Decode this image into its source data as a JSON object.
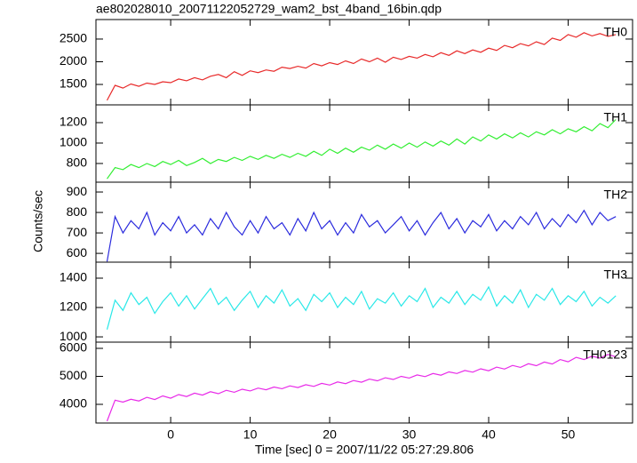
{
  "title": "ae802028010_20071122052729_wam2_bst_4band_16bin.qdp",
  "ylabel": "Counts/sec",
  "xlabel": "Time [sec] 0 = 2007/11/22 05:27:29.806",
  "chart_data": [
    {
      "type": "line",
      "xlim": [
        -9.4,
        58.1
      ],
      "xticks": [
        0,
        10,
        20,
        30,
        40,
        50
      ],
      "ylim": [
        1050,
        2930
      ],
      "yticks": [
        1500,
        2000,
        2500
      ],
      "x": [
        -8,
        -7,
        -6,
        -5,
        -4,
        -3,
        -2,
        -1,
        0,
        1,
        2,
        3,
        4,
        5,
        6,
        7,
        8,
        9,
        10,
        11,
        12,
        13,
        14,
        15,
        16,
        17,
        18,
        19,
        20,
        21,
        22,
        23,
        24,
        25,
        26,
        27,
        28,
        29,
        30,
        31,
        32,
        33,
        34,
        35,
        36,
        37,
        38,
        39,
        40,
        41,
        42,
        43,
        44,
        45,
        46,
        47,
        48,
        49,
        50,
        51,
        52,
        53,
        54,
        55,
        56
      ],
      "series": [
        {
          "name": "TH0",
          "color": "#e82a2a",
          "values": [
            1150,
            1480,
            1420,
            1510,
            1460,
            1530,
            1500,
            1560,
            1540,
            1620,
            1580,
            1650,
            1600,
            1680,
            1720,
            1650,
            1780,
            1700,
            1800,
            1760,
            1820,
            1790,
            1880,
            1850,
            1900,
            1860,
            1960,
            1910,
            1980,
            1940,
            2020,
            1960,
            2060,
            2000,
            2080,
            1990,
            2100,
            2050,
            2120,
            2080,
            2160,
            2110,
            2200,
            2140,
            2240,
            2180,
            2260,
            2210,
            2300,
            2250,
            2360,
            2310,
            2400,
            2350,
            2440,
            2380,
            2520,
            2470,
            2600,
            2540,
            2640,
            2570,
            2620,
            2560,
            2600
          ]
        }
      ]
    },
    {
      "type": "line",
      "xlim": [
        -9.4,
        58.1
      ],
      "xticks": [
        0,
        10,
        20,
        30,
        40,
        50
      ],
      "ylim": [
        617,
        1374
      ],
      "yticks": [
        800,
        1000,
        1200
      ],
      "x": [
        -8,
        -7,
        -6,
        -5,
        -4,
        -3,
        -2,
        -1,
        0,
        1,
        2,
        3,
        4,
        5,
        6,
        7,
        8,
        9,
        10,
        11,
        12,
        13,
        14,
        15,
        16,
        17,
        18,
        19,
        20,
        21,
        22,
        23,
        24,
        25,
        26,
        27,
        28,
        29,
        30,
        31,
        32,
        33,
        34,
        35,
        36,
        37,
        38,
        39,
        40,
        41,
        42,
        43,
        44,
        45,
        46,
        47,
        48,
        49,
        50,
        51,
        52,
        53,
        54,
        55,
        56
      ],
      "series": [
        {
          "name": "TH1",
          "color": "#33ee33",
          "values": [
            650,
            760,
            740,
            790,
            760,
            800,
            770,
            820,
            790,
            830,
            780,
            810,
            850,
            800,
            840,
            820,
            860,
            830,
            870,
            840,
            880,
            850,
            890,
            860,
            900,
            870,
            920,
            880,
            940,
            900,
            950,
            910,
            960,
            930,
            980,
            940,
            990,
            950,
            1000,
            960,
            1010,
            970,
            1020,
            980,
            1040,
            990,
            1060,
            1020,
            1080,
            1040,
            1090,
            1050,
            1100,
            1060,
            1110,
            1080,
            1130,
            1090,
            1140,
            1110,
            1160,
            1120,
            1190,
            1150,
            1230
          ]
        }
      ]
    },
    {
      "type": "line",
      "xlim": [
        -9.4,
        58.1
      ],
      "xticks": [
        0,
        10,
        20,
        30,
        40,
        50
      ],
      "ylim": [
        557,
        948
      ],
      "yticks": [
        600,
        700,
        800,
        900
      ],
      "x": [
        -8,
        -7,
        -6,
        -5,
        -4,
        -3,
        -2,
        -1,
        0,
        1,
        2,
        3,
        4,
        5,
        6,
        7,
        8,
        9,
        10,
        11,
        12,
        13,
        14,
        15,
        16,
        17,
        18,
        19,
        20,
        21,
        22,
        23,
        24,
        25,
        26,
        27,
        28,
        29,
        30,
        31,
        32,
        33,
        34,
        35,
        36,
        37,
        38,
        39,
        40,
        41,
        42,
        43,
        44,
        45,
        46,
        47,
        48,
        49,
        50,
        51,
        52,
        53,
        54,
        55,
        56
      ],
      "series": [
        {
          "name": "TH2",
          "color": "#2b2bdd",
          "values": [
            560,
            780,
            700,
            760,
            720,
            800,
            690,
            750,
            710,
            780,
            700,
            740,
            690,
            770,
            720,
            800,
            730,
            690,
            760,
            700,
            780,
            720,
            750,
            690,
            770,
            710,
            800,
            720,
            760,
            690,
            750,
            700,
            790,
            730,
            760,
            700,
            740,
            780,
            710,
            760,
            690,
            750,
            800,
            720,
            770,
            700,
            760,
            730,
            790,
            710,
            760,
            720,
            780,
            740,
            800,
            720,
            770,
            730,
            790,
            750,
            810,
            740,
            800,
            760,
            780
          ]
        }
      ]
    },
    {
      "type": "line",
      "xlim": [
        -9.4,
        58.1
      ],
      "xticks": [
        0,
        10,
        20,
        30,
        40,
        50
      ],
      "ylim": [
        964,
        1509
      ],
      "yticks": [
        1000,
        1200,
        1400
      ],
      "x": [
        -8,
        -7,
        -6,
        -5,
        -4,
        -3,
        -2,
        -1,
        0,
        1,
        2,
        3,
        4,
        5,
        6,
        7,
        8,
        9,
        10,
        11,
        12,
        13,
        14,
        15,
        16,
        17,
        18,
        19,
        20,
        21,
        22,
        23,
        24,
        25,
        26,
        27,
        28,
        29,
        30,
        31,
        32,
        33,
        34,
        35,
        36,
        37,
        38,
        39,
        40,
        41,
        42,
        43,
        44,
        45,
        46,
        47,
        48,
        49,
        50,
        51,
        52,
        53,
        54,
        55,
        56
      ],
      "series": [
        {
          "name": "TH3",
          "color": "#2ae8e8",
          "values": [
            1050,
            1250,
            1180,
            1300,
            1220,
            1270,
            1160,
            1240,
            1300,
            1210,
            1280,
            1190,
            1260,
            1330,
            1220,
            1270,
            1180,
            1250,
            1310,
            1200,
            1280,
            1230,
            1320,
            1210,
            1260,
            1180,
            1290,
            1240,
            1300,
            1200,
            1270,
            1220,
            1310,
            1190,
            1260,
            1230,
            1300,
            1210,
            1280,
            1240,
            1330,
            1200,
            1270,
            1230,
            1310,
            1220,
            1290,
            1250,
            1340,
            1210,
            1280,
            1230,
            1320,
            1200,
            1290,
            1250,
            1330,
            1220,
            1280,
            1240,
            1310,
            1210,
            1270,
            1230,
            1280
          ]
        }
      ]
    },
    {
      "type": "line",
      "xlim": [
        -9.4,
        58.1
      ],
      "xticks": [
        0,
        10,
        20,
        30,
        40,
        50
      ],
      "ylim": [
        3333,
        6222
      ],
      "yticks": [
        4000,
        5000,
        6000
      ],
      "x": [
        -8,
        -7,
        -6,
        -5,
        -4,
        -3,
        -2,
        -1,
        0,
        1,
        2,
        3,
        4,
        5,
        6,
        7,
        8,
        9,
        10,
        11,
        12,
        13,
        14,
        15,
        16,
        17,
        18,
        19,
        20,
        21,
        22,
        23,
        24,
        25,
        26,
        27,
        28,
        29,
        30,
        31,
        32,
        33,
        34,
        35,
        36,
        37,
        38,
        39,
        40,
        41,
        42,
        43,
        44,
        45,
        46,
        47,
        48,
        49,
        50,
        51,
        52,
        53,
        54,
        55,
        56
      ],
      "series": [
        {
          "name": "TH0123",
          "color": "#e82ae8",
          "values": [
            3400,
            4150,
            4080,
            4180,
            4120,
            4250,
            4170,
            4300,
            4220,
            4350,
            4280,
            4400,
            4330,
            4450,
            4380,
            4500,
            4430,
            4540,
            4480,
            4580,
            4520,
            4620,
            4560,
            4660,
            4600,
            4700,
            4640,
            4750,
            4690,
            4800,
            4740,
            4850,
            4790,
            4900,
            4840,
            4950,
            4890,
            5000,
            4940,
            5050,
            4990,
            5100,
            5040,
            5160,
            5100,
            5210,
            5150,
            5270,
            5200,
            5330,
            5260,
            5390,
            5320,
            5450,
            5380,
            5510,
            5440,
            5600,
            5520,
            5680,
            5600,
            5720,
            5650,
            5780,
            5700
          ]
        }
      ]
    }
  ]
}
